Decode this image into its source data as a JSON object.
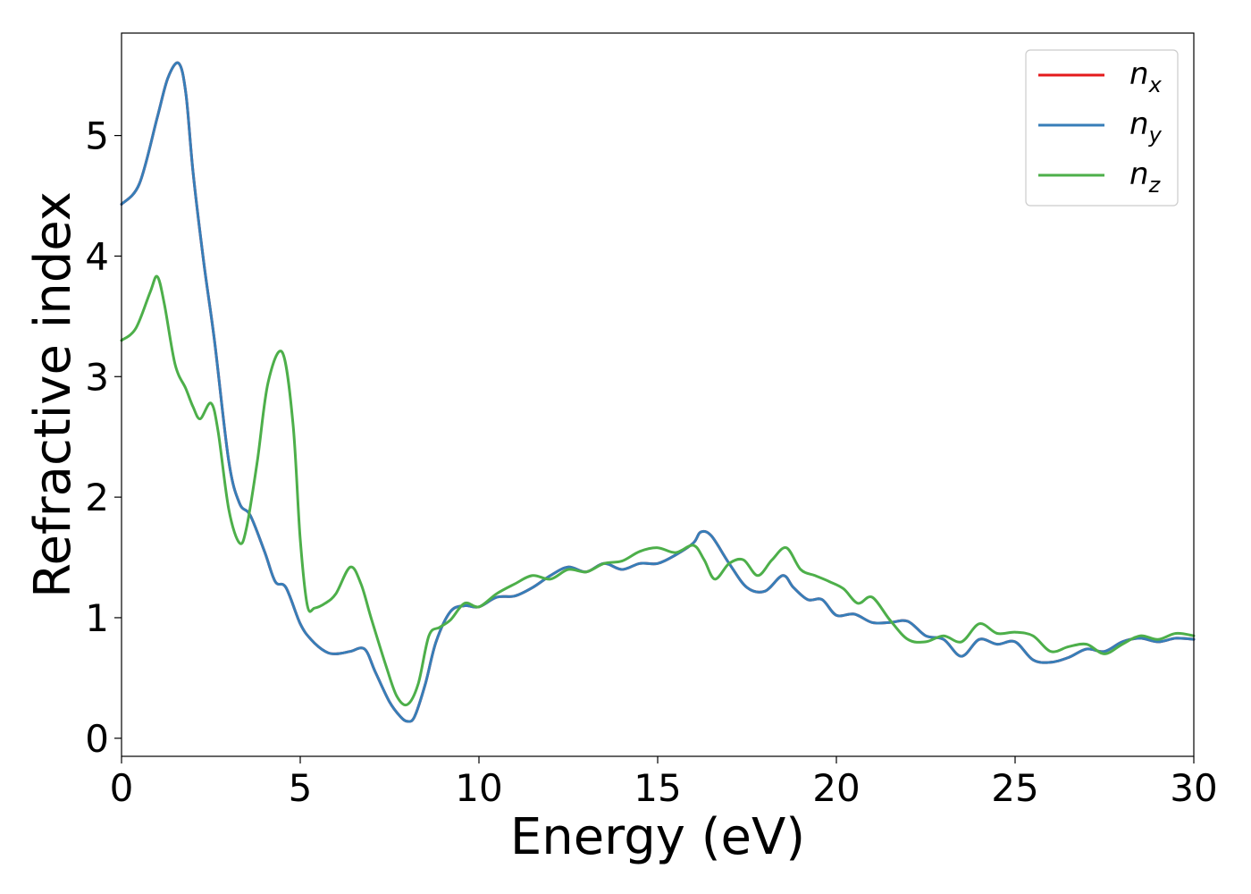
{
  "chart_data": {
    "type": "line",
    "xlabel": "Energy (eV)",
    "ylabel": "Refractive index",
    "xlim": [
      0,
      30
    ],
    "ylim": [
      -0.15,
      5.85
    ],
    "xticks": [
      0,
      5,
      10,
      15,
      20,
      25,
      30
    ],
    "yticks": [
      0,
      1,
      2,
      3,
      4,
      5
    ],
    "xtick_labels": [
      "0",
      "5",
      "10",
      "15",
      "20",
      "25",
      "30"
    ],
    "ytick_labels": [
      "0",
      "1",
      "2",
      "3",
      "4",
      "5"
    ],
    "grid": false,
    "legend_position": "top-right",
    "series": [
      {
        "name": "n_x",
        "legend_base": "n",
        "legend_sub": "x",
        "color": "#e41a1c",
        "x": [
          0,
          0.5,
          1.0,
          1.3,
          1.6,
          1.8,
          2.0,
          2.3,
          2.6,
          3.0,
          3.3,
          3.6,
          4.0,
          4.3,
          4.6,
          5.0,
          5.3,
          5.7,
          6.0,
          6.4,
          6.8,
          7.1,
          7.5,
          7.8,
          8.0,
          8.2,
          8.5,
          8.8,
          9.2,
          9.6,
          10.0,
          10.5,
          11.0,
          11.5,
          12.0,
          12.5,
          13.0,
          13.5,
          14.0,
          14.5,
          15.0,
          15.5,
          16.0,
          16.2,
          16.5,
          17.0,
          17.5,
          18.0,
          18.5,
          18.8,
          19.2,
          19.6,
          20.0,
          20.5,
          21.0,
          21.5,
          22.0,
          22.5,
          23.0,
          23.5,
          24.0,
          24.5,
          25.0,
          25.5,
          26.0,
          26.5,
          27.0,
          27.5,
          28.0,
          28.5,
          29.0,
          29.5,
          30.0
        ],
        "y": [
          4.43,
          4.6,
          5.15,
          5.48,
          5.6,
          5.35,
          4.7,
          3.95,
          3.3,
          2.3,
          1.95,
          1.85,
          1.55,
          1.3,
          1.25,
          0.95,
          0.82,
          0.72,
          0.7,
          0.72,
          0.74,
          0.55,
          0.3,
          0.18,
          0.14,
          0.18,
          0.45,
          0.8,
          1.05,
          1.1,
          1.09,
          1.17,
          1.18,
          1.25,
          1.35,
          1.42,
          1.38,
          1.45,
          1.4,
          1.45,
          1.45,
          1.52,
          1.62,
          1.71,
          1.68,
          1.45,
          1.25,
          1.22,
          1.35,
          1.25,
          1.15,
          1.15,
          1.02,
          1.03,
          0.96,
          0.96,
          0.97,
          0.85,
          0.82,
          0.68,
          0.82,
          0.78,
          0.8,
          0.65,
          0.63,
          0.67,
          0.74,
          0.72,
          0.8,
          0.83,
          0.8,
          0.83,
          0.82
        ]
      },
      {
        "name": "n_y",
        "legend_base": "n",
        "legend_sub": "y",
        "color": "#377eb8",
        "x": [
          0,
          0.5,
          1.0,
          1.3,
          1.6,
          1.8,
          2.0,
          2.3,
          2.6,
          3.0,
          3.3,
          3.6,
          4.0,
          4.3,
          4.6,
          5.0,
          5.3,
          5.7,
          6.0,
          6.4,
          6.8,
          7.1,
          7.5,
          7.8,
          8.0,
          8.2,
          8.5,
          8.8,
          9.2,
          9.6,
          10.0,
          10.5,
          11.0,
          11.5,
          12.0,
          12.5,
          13.0,
          13.5,
          14.0,
          14.5,
          15.0,
          15.5,
          16.0,
          16.2,
          16.5,
          17.0,
          17.5,
          18.0,
          18.5,
          18.8,
          19.2,
          19.6,
          20.0,
          20.5,
          21.0,
          21.5,
          22.0,
          22.5,
          23.0,
          23.5,
          24.0,
          24.5,
          25.0,
          25.5,
          26.0,
          26.5,
          27.0,
          27.5,
          28.0,
          28.5,
          29.0,
          29.5,
          30.0
        ],
        "y": [
          4.43,
          4.6,
          5.15,
          5.48,
          5.6,
          5.35,
          4.7,
          3.95,
          3.3,
          2.3,
          1.95,
          1.85,
          1.55,
          1.3,
          1.25,
          0.95,
          0.82,
          0.72,
          0.7,
          0.72,
          0.74,
          0.55,
          0.3,
          0.18,
          0.14,
          0.18,
          0.45,
          0.8,
          1.05,
          1.1,
          1.09,
          1.17,
          1.18,
          1.25,
          1.35,
          1.42,
          1.38,
          1.45,
          1.4,
          1.45,
          1.45,
          1.52,
          1.62,
          1.71,
          1.68,
          1.45,
          1.25,
          1.22,
          1.35,
          1.25,
          1.15,
          1.15,
          1.02,
          1.03,
          0.96,
          0.96,
          0.97,
          0.85,
          0.82,
          0.68,
          0.82,
          0.78,
          0.8,
          0.65,
          0.63,
          0.67,
          0.74,
          0.72,
          0.8,
          0.83,
          0.8,
          0.83,
          0.82
        ]
      },
      {
        "name": "n_z",
        "legend_base": "n",
        "legend_sub": "z",
        "color": "#4daf4a",
        "x": [
          0,
          0.4,
          0.8,
          1.0,
          1.2,
          1.5,
          1.8,
          2.0,
          2.2,
          2.5,
          2.7,
          3.0,
          3.3,
          3.5,
          3.8,
          4.1,
          4.5,
          4.8,
          5.0,
          5.2,
          5.4,
          5.7,
          6.0,
          6.4,
          6.7,
          7.0,
          7.4,
          7.7,
          8.0,
          8.3,
          8.6,
          8.9,
          9.2,
          9.6,
          10.0,
          10.5,
          11.0,
          11.5,
          12.0,
          12.5,
          13.0,
          13.5,
          14.0,
          14.5,
          15.0,
          15.5,
          16.0,
          16.3,
          16.6,
          17.0,
          17.4,
          17.8,
          18.2,
          18.6,
          19.0,
          19.4,
          19.8,
          20.2,
          20.6,
          21.0,
          21.5,
          22.0,
          22.5,
          23.0,
          23.5,
          24.0,
          24.5,
          25.0,
          25.5,
          26.0,
          26.5,
          27.0,
          27.5,
          28.0,
          28.5,
          29.0,
          29.5,
          30.0
        ],
        "y": [
          3.3,
          3.4,
          3.7,
          3.83,
          3.6,
          3.1,
          2.9,
          2.75,
          2.65,
          2.78,
          2.55,
          1.9,
          1.62,
          1.75,
          2.3,
          2.95,
          3.2,
          2.6,
          1.65,
          1.1,
          1.08,
          1.12,
          1.2,
          1.42,
          1.28,
          0.98,
          0.6,
          0.35,
          0.28,
          0.45,
          0.85,
          0.92,
          0.98,
          1.12,
          1.09,
          1.2,
          1.28,
          1.35,
          1.32,
          1.4,
          1.38,
          1.45,
          1.47,
          1.55,
          1.58,
          1.54,
          1.6,
          1.48,
          1.32,
          1.45,
          1.48,
          1.35,
          1.48,
          1.58,
          1.4,
          1.35,
          1.3,
          1.24,
          1.12,
          1.17,
          0.98,
          0.82,
          0.8,
          0.85,
          0.8,
          0.95,
          0.87,
          0.88,
          0.85,
          0.72,
          0.76,
          0.78,
          0.7,
          0.78,
          0.85,
          0.82,
          0.87,
          0.85
        ]
      }
    ]
  }
}
